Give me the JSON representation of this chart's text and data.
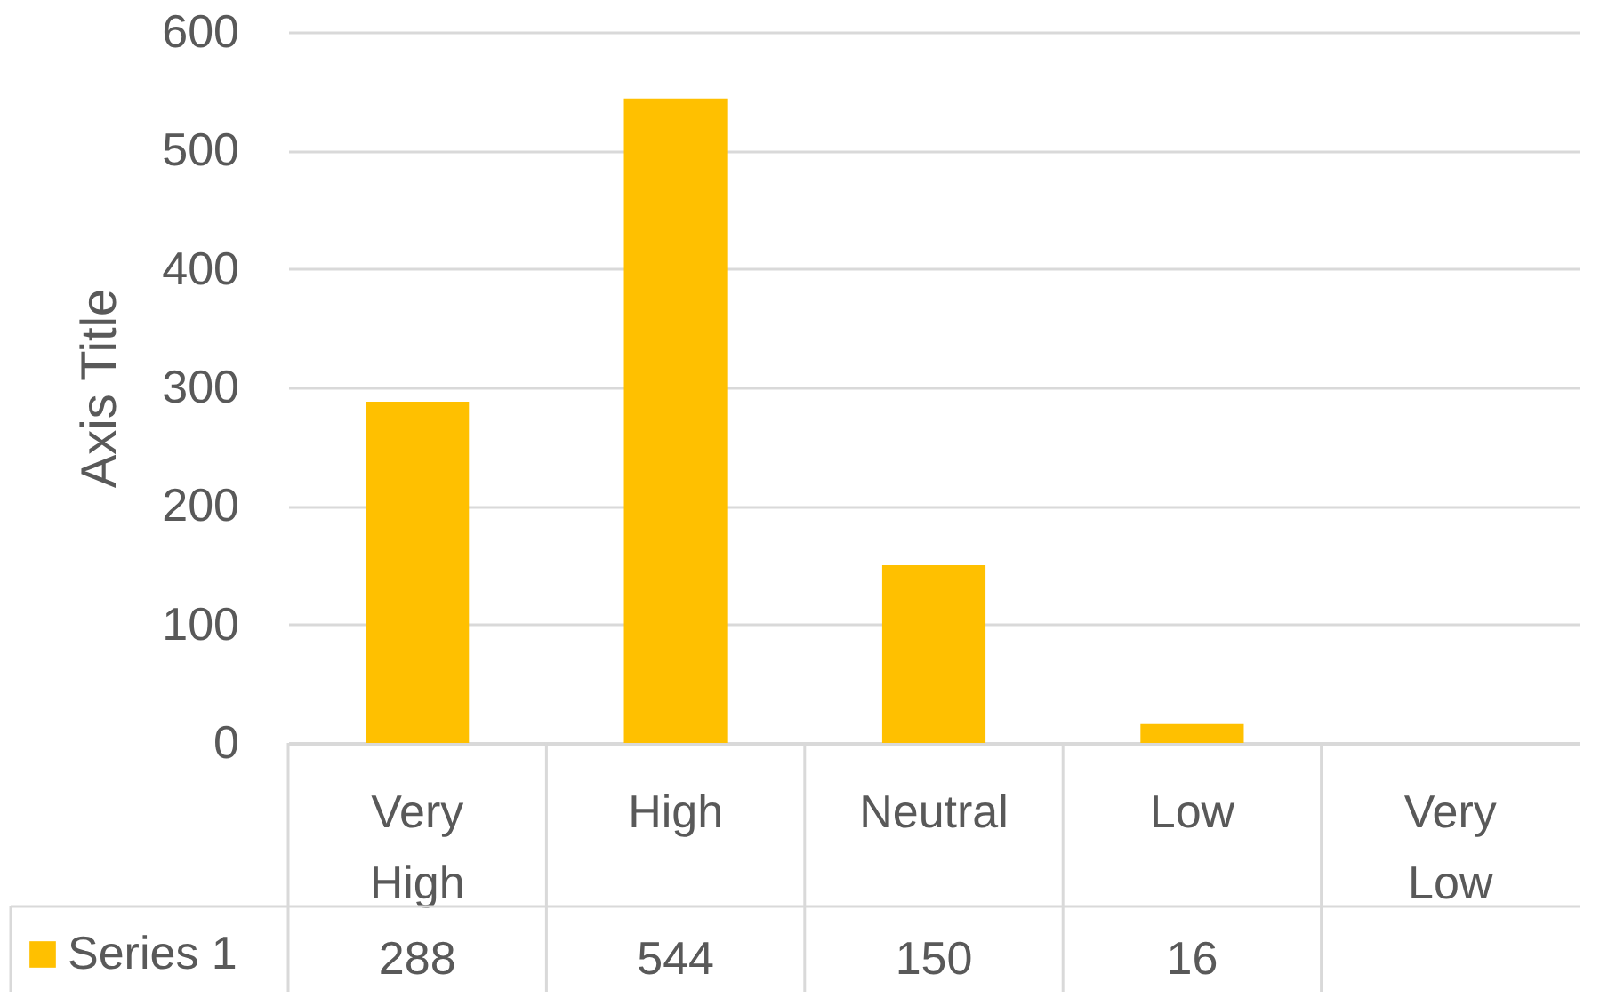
{
  "chart_data": {
    "type": "bar",
    "ylabel": "Axis Title",
    "categories": [
      "Very High",
      "High",
      "Neutral",
      "Low",
      "Very Low"
    ],
    "series": [
      {
        "name": "Series 1",
        "color": "#ffc000",
        "values": [
          288,
          544,
          150,
          16,
          null
        ]
      }
    ],
    "ylim": [
      0,
      600
    ],
    "yticks": [
      0,
      100,
      200,
      300,
      400,
      500,
      600
    ],
    "grid": "y",
    "legend": "bottom",
    "data_labels": true
  }
}
